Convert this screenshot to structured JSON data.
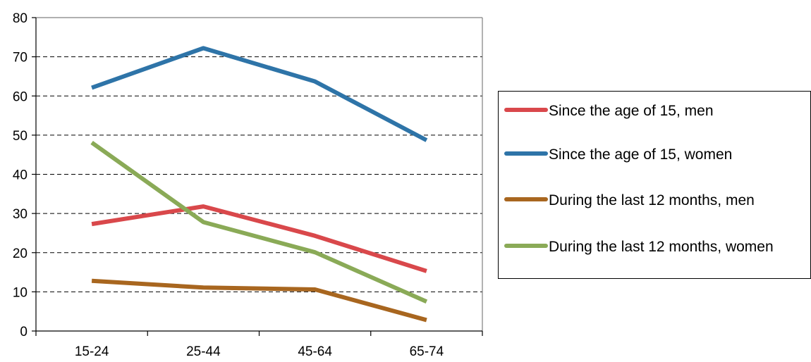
{
  "chart_data": {
    "type": "line",
    "categories": [
      "15-24",
      "25-44",
      "45-64",
      "65-74"
    ],
    "ylim": [
      0,
      80
    ],
    "yticks": [
      0,
      10,
      20,
      30,
      40,
      50,
      60,
      70,
      80
    ],
    "grid": "horizontal dashed",
    "legend_position": "right",
    "series": [
      {
        "name": "Since the age of 15, men",
        "color": "#D9484B",
        "values": [
          27.3,
          31.8,
          24.3,
          15.3
        ]
      },
      {
        "name": "Since the age of 15, women",
        "color": "#2E74A8",
        "values": [
          62.1,
          72.2,
          63.7,
          48.7
        ]
      },
      {
        "name": "During the last 12 months, men",
        "color": "#A8661F",
        "values": [
          12.8,
          11.1,
          10.6,
          2.8
        ]
      },
      {
        "name": "During the last 12 months, women",
        "color": "#8AAA57",
        "values": [
          48.1,
          27.8,
          20.1,
          7.5
        ]
      }
    ]
  }
}
